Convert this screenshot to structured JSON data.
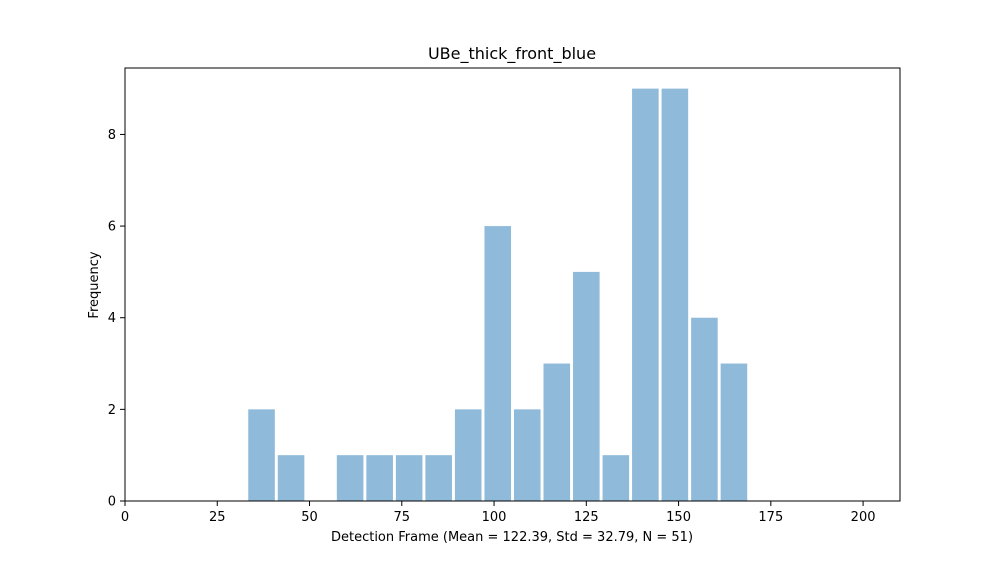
{
  "chart_data": {
    "type": "bar",
    "title": "UBe_thick_front_blue",
    "xlabel": "Detection Frame (Mean = 122.39, Std = 32.79, N = 51)",
    "ylabel": "Frequency",
    "xlim": [
      0,
      210
    ],
    "ylim": [
      0,
      9.45
    ],
    "xticks": [
      0,
      25,
      50,
      75,
      100,
      125,
      150,
      175,
      200
    ],
    "yticks": [
      0,
      2,
      4,
      6,
      8
    ],
    "bin_width": 8,
    "bar_fraction": 0.9,
    "bar_color": "#8fbada",
    "bins": [
      {
        "x": 37,
        "value": 2
      },
      {
        "x": 45,
        "value": 1
      },
      {
        "x": 53,
        "value": 0
      },
      {
        "x": 61,
        "value": 1
      },
      {
        "x": 69,
        "value": 1
      },
      {
        "x": 77,
        "value": 1
      },
      {
        "x": 85,
        "value": 1
      },
      {
        "x": 93,
        "value": 2
      },
      {
        "x": 101,
        "value": 6
      },
      {
        "x": 109,
        "value": 2
      },
      {
        "x": 117,
        "value": 3
      },
      {
        "x": 125,
        "value": 5
      },
      {
        "x": 133,
        "value": 1
      },
      {
        "x": 141,
        "value": 9
      },
      {
        "x": 149,
        "value": 9
      },
      {
        "x": 157,
        "value": 4
      },
      {
        "x": 165,
        "value": 3
      }
    ],
    "grid": false,
    "legend": "none"
  }
}
